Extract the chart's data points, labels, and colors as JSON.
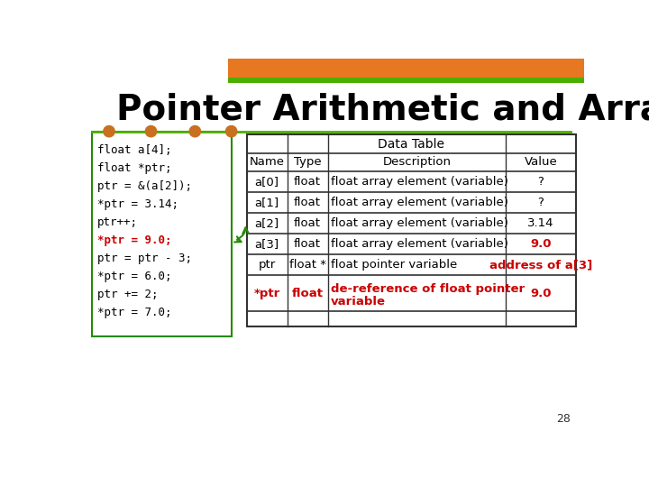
{
  "title": "Pointer Arithmetic and Array",
  "bg_color": "#ffffff",
  "title_color": "#000000",
  "header_bar_color": "#E87722",
  "green_bar_color": "#4CAF00",
  "code_lines": [
    "float a[4];",
    "float *ptr;",
    "ptr = &(a[2]);",
    "*ptr = 3.14;",
    "ptr++;",
    "*ptr = 9.0;",
    "ptr = ptr - 3;",
    "*ptr = 6.0;",
    "ptr += 2;",
    "*ptr = 7.0;"
  ],
  "code_colors": [
    "#000000",
    "#000000",
    "#000000",
    "#000000",
    "#000000",
    "#cc0000",
    "#000000",
    "#000000",
    "#000000",
    "#000000"
  ],
  "table_header": "Data Table",
  "col_headers": [
    "Name",
    "Type",
    "Description",
    "Value"
  ],
  "rows": [
    [
      "a[0]",
      "float",
      "float array element (variable)",
      "?"
    ],
    [
      "a[1]",
      "float",
      "float array element (variable)",
      "?"
    ],
    [
      "a[2]",
      "float",
      "float array element (variable)",
      "3.14"
    ],
    [
      "a[3]",
      "float",
      "float array element (variable)",
      "9.0"
    ],
    [
      "ptr",
      "float *",
      "float pointer variable",
      "address of a[3]"
    ],
    [
      "*ptr",
      "float",
      "de-reference of float pointer\nvariable",
      "9.0"
    ],
    [
      "",
      "",
      "",
      ""
    ]
  ],
  "row_colors": [
    [
      "#000000",
      "#000000",
      "#000000",
      "#000000"
    ],
    [
      "#000000",
      "#000000",
      "#000000",
      "#000000"
    ],
    [
      "#000000",
      "#000000",
      "#000000",
      "#000000"
    ],
    [
      "#000000",
      "#000000",
      "#000000",
      "#cc0000"
    ],
    [
      "#000000",
      "#000000",
      "#000000",
      "#cc0000"
    ],
    [
      "#cc0000",
      "#cc0000",
      "#cc0000",
      "#cc0000"
    ],
    [
      "#000000",
      "#000000",
      "#000000",
      "#000000"
    ]
  ],
  "dot_color": "#C87020",
  "page_num": "28"
}
